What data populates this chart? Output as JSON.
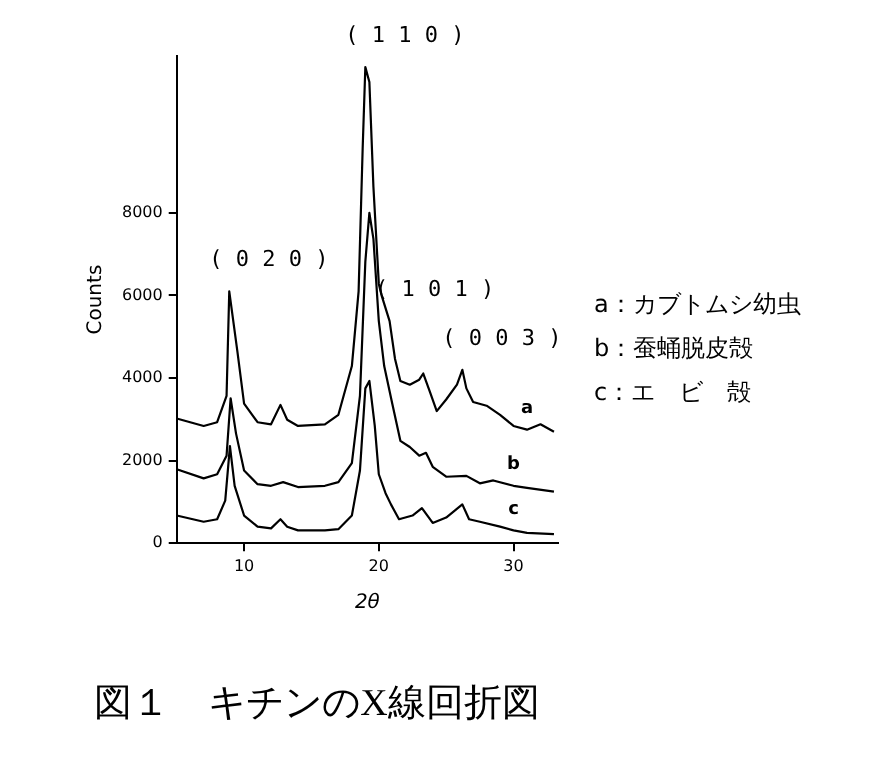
{
  "chart_data": {
    "type": "line",
    "title": "図１　キチンのX線回折図",
    "xlabel": "2θ",
    "ylabel": "Counts",
    "xlim": [
      5,
      33.3
    ],
    "xticks": [
      10,
      20,
      30
    ],
    "ylim": [
      0,
      11800
    ],
    "yticks": [
      0,
      2000,
      4000,
      6000,
      8000
    ],
    "grid": false,
    "legend": false,
    "marker": "none",
    "line_style": "solid",
    "series": [
      {
        "name": "a",
        "color": "#000000",
        "x": [
          5,
          7,
          8,
          8.7,
          8.9,
          9.5,
          10,
          11,
          12,
          12.7,
          13.2,
          14,
          16,
          17,
          18,
          18.5,
          18.8,
          19,
          19.3,
          19.6,
          20,
          20.2,
          20.8,
          21.2,
          21.6,
          22.3,
          23,
          23.3,
          23.8,
          24.3,
          25,
          25.8,
          26.2,
          26.5,
          27,
          28,
          29,
          30,
          31,
          32,
          33
        ],
        "values": [
          3020,
          2840,
          2930,
          3570,
          6100,
          4650,
          3380,
          2930,
          2880,
          3350,
          2990,
          2840,
          2880,
          3110,
          4290,
          6100,
          9540,
          11530,
          11170,
          8630,
          6280,
          6010,
          5380,
          4470,
          3930,
          3840,
          3960,
          4110,
          3660,
          3200,
          3480,
          3840,
          4200,
          3750,
          3420,
          3330,
          3110,
          2840,
          2750,
          2880,
          2700
        ]
      },
      {
        "name": "b",
        "color": "#000000",
        "x": [
          5,
          7,
          8,
          8.7,
          9,
          9.4,
          10,
          11,
          12,
          12.9,
          14,
          16,
          17,
          18,
          18.6,
          19,
          19.3,
          19.6,
          20,
          20.4,
          21,
          21.6,
          22.3,
          23,
          23.5,
          24,
          25,
          26.5,
          27.5,
          28.5,
          30,
          31,
          33
        ],
        "values": [
          1790,
          1570,
          1670,
          2120,
          3510,
          2660,
          1760,
          1430,
          1390,
          1480,
          1360,
          1390,
          1480,
          1940,
          3570,
          6820,
          8000,
          7370,
          5380,
          4290,
          3380,
          2480,
          2330,
          2120,
          2190,
          1850,
          1610,
          1630,
          1450,
          1520,
          1390,
          1340,
          1250
        ]
      },
      {
        "name": "c",
        "color": "#000000",
        "x": [
          5,
          7,
          8,
          8.6,
          8.95,
          9.3,
          10,
          11,
          12,
          12.7,
          13.2,
          14,
          16,
          17,
          18,
          18.6,
          19,
          19.3,
          19.7,
          20,
          20.5,
          20.9,
          21.5,
          22.5,
          23.2,
          24,
          25,
          26.2,
          26.7,
          27.5,
          29,
          30,
          31,
          33
        ],
        "values": [
          670,
          520,
          580,
          1030,
          2350,
          1390,
          670,
          400,
          360,
          580,
          400,
          310,
          310,
          340,
          670,
          1760,
          3750,
          3930,
          2840,
          1670,
          1210,
          940,
          580,
          670,
          850,
          490,
          620,
          940,
          580,
          520,
          400,
          310,
          250,
          220
        ]
      }
    ],
    "annotations": [
      {
        "text": "( 0 2 0 )",
        "x": 8.9,
        "y": 6100
      },
      {
        "text": "( 1 1 0 )",
        "x": 19,
        "y": 11530
      },
      {
        "text": "( 1 0 1 )",
        "x": 21.2,
        "y": 5380
      },
      {
        "text": "( 0 0 3 )",
        "x": 26.2,
        "y": 4200
      },
      "a：カブトムシ幼虫",
      "b：蚕蛹脱皮殻",
      "c：エ　ビ　殻"
    ]
  }
}
